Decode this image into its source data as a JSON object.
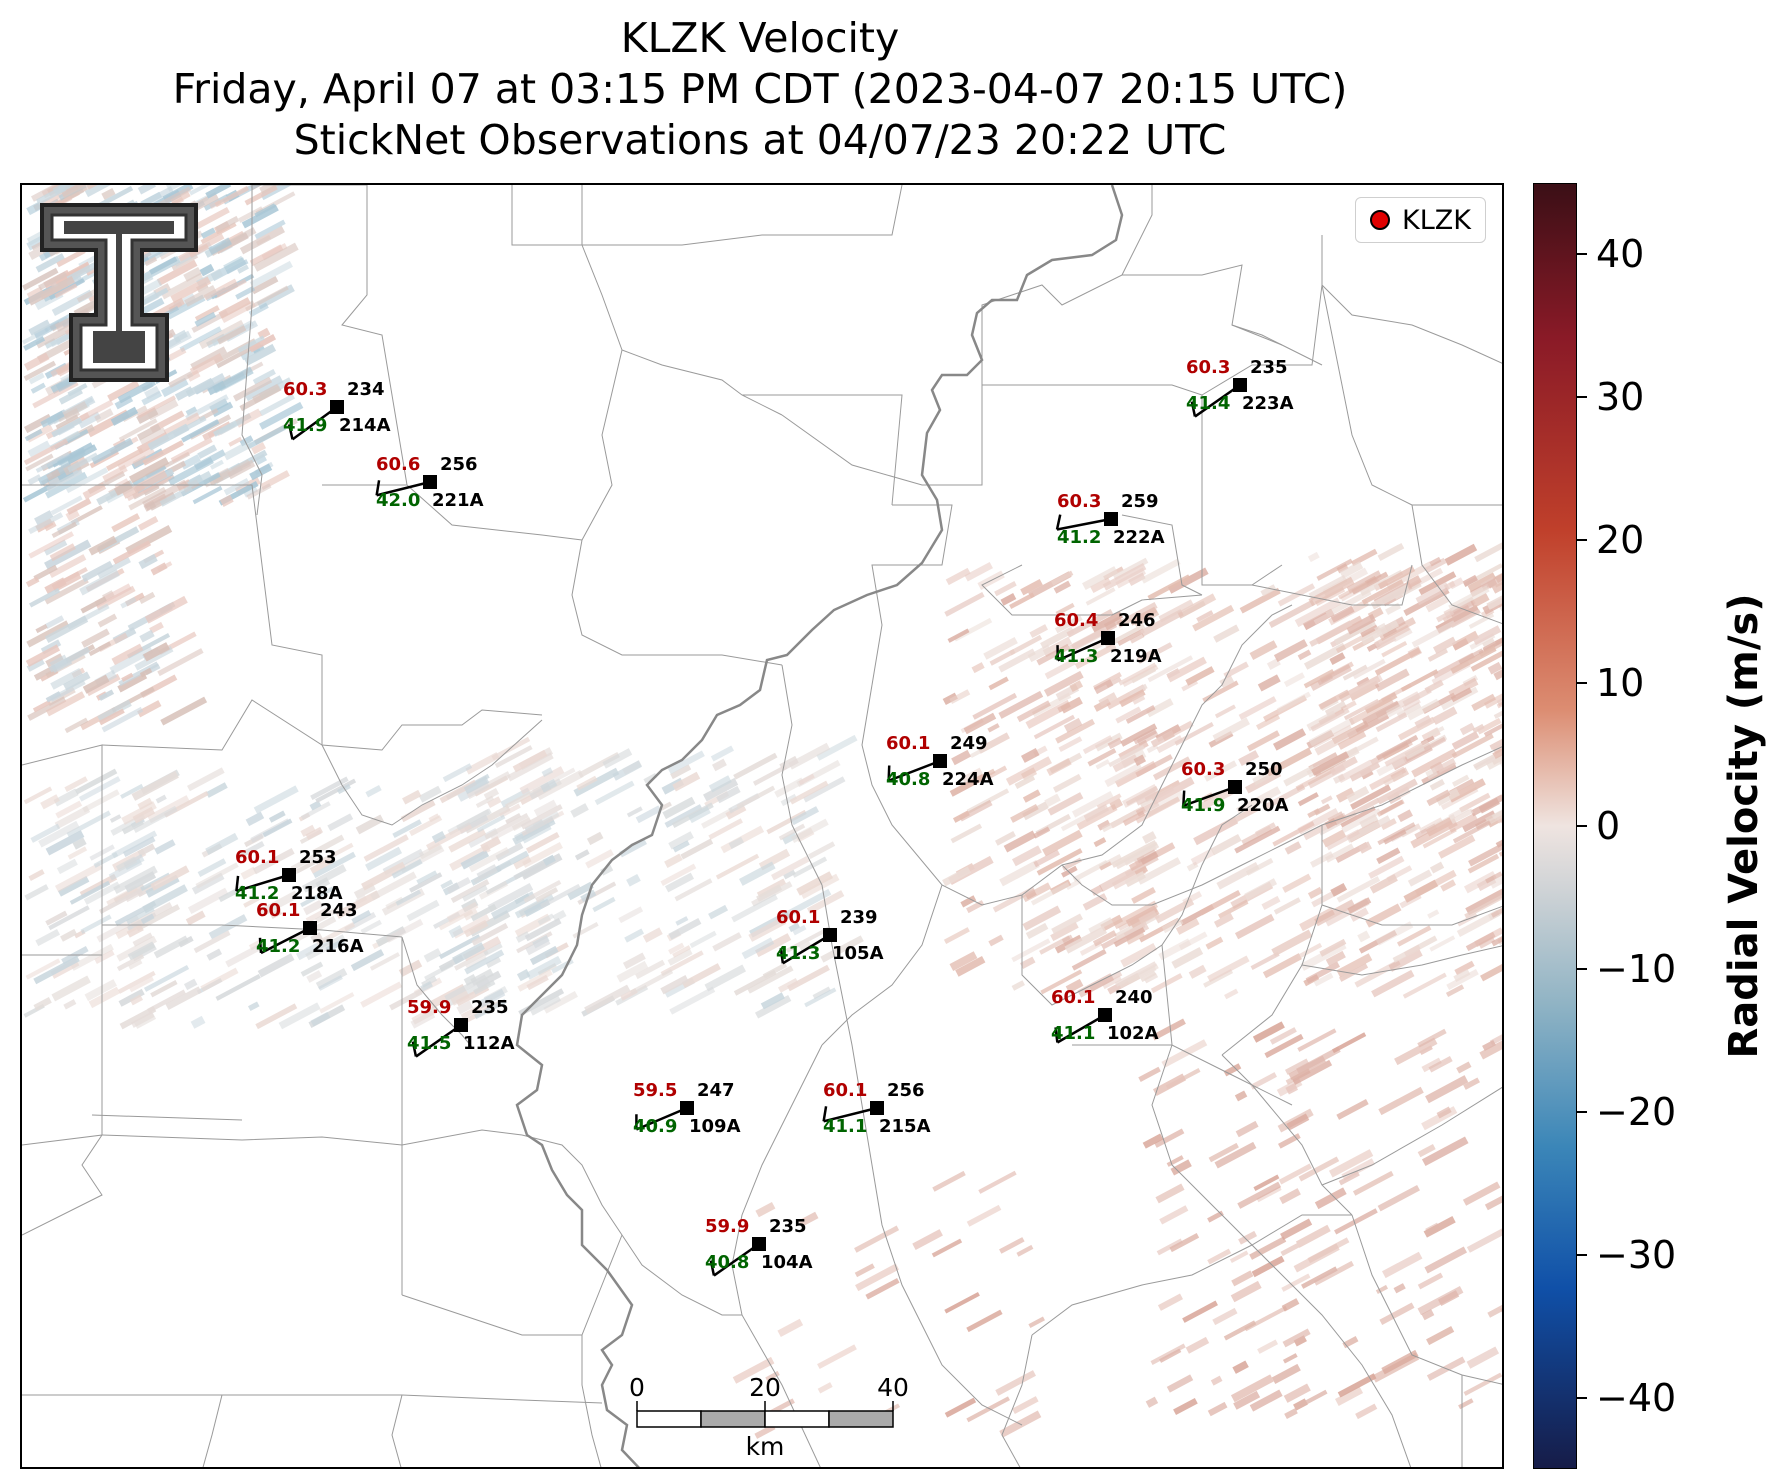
{
  "title": {
    "line1": "KLZK Velocity",
    "line2": "Friday, April 07 at 03:15 PM CDT (2023-04-07 20:15 UTC)",
    "line3": "StickNet Observations at 04/07/23 20:22 UTC"
  },
  "legend": {
    "label": "KLZK"
  },
  "colorbar": {
    "label": "Radial Velocity (m/s)",
    "ticks": [
      "40",
      "30",
      "20",
      "10",
      "0",
      "−10",
      "−20",
      "−30",
      "−40"
    ]
  },
  "scale_bar": {
    "labels": [
      "0",
      "20",
      "40"
    ],
    "unit": "km"
  },
  "stations": [
    {
      "id": "214A",
      "temp": "60.3",
      "dew": "41.9",
      "dir": "234"
    },
    {
      "id": "221A",
      "temp": "60.6",
      "dew": "42.0",
      "dir": "256"
    },
    {
      "id": "223A",
      "temp": "60.3",
      "dew": "41.4",
      "dir": "235"
    },
    {
      "id": "222A",
      "temp": "60.3",
      "dew": "41.2",
      "dir": "259"
    },
    {
      "id": "219A",
      "temp": "60.4",
      "dew": "41.3",
      "dir": "246"
    },
    {
      "id": "224A",
      "temp": "60.1",
      "dew": "40.8",
      "dir": "249"
    },
    {
      "id": "220A",
      "temp": "60.3",
      "dew": "41.9",
      "dir": "250"
    },
    {
      "id": "218A",
      "temp": "60.1",
      "dew": "41.2",
      "dir": "253"
    },
    {
      "id": "216A",
      "temp": "60.1",
      "dew": "41.2",
      "dir": "243"
    },
    {
      "id": "105A",
      "temp": "60.1",
      "dew": "41.3",
      "dir": "239"
    },
    {
      "id": "112A",
      "temp": "59.9",
      "dew": "41.5",
      "dir": "235"
    },
    {
      "id": "102A",
      "temp": "60.1",
      "dew": "41.1",
      "dir": "240"
    },
    {
      "id": "109A",
      "temp": "59.5",
      "dew": "40.9",
      "dir": "247"
    },
    {
      "id": "215A",
      "temp": "60.1",
      "dew": "41.1",
      "dir": "256"
    },
    {
      "id": "104A",
      "temp": "59.9",
      "dew": "40.8",
      "dir": "235"
    }
  ],
  "colors": {
    "temp": "#b00000",
    "dew": "#006400",
    "station": "#000000",
    "river": "#888888"
  },
  "logo": {
    "text": "TT",
    "name": "texas-tech-logo"
  }
}
